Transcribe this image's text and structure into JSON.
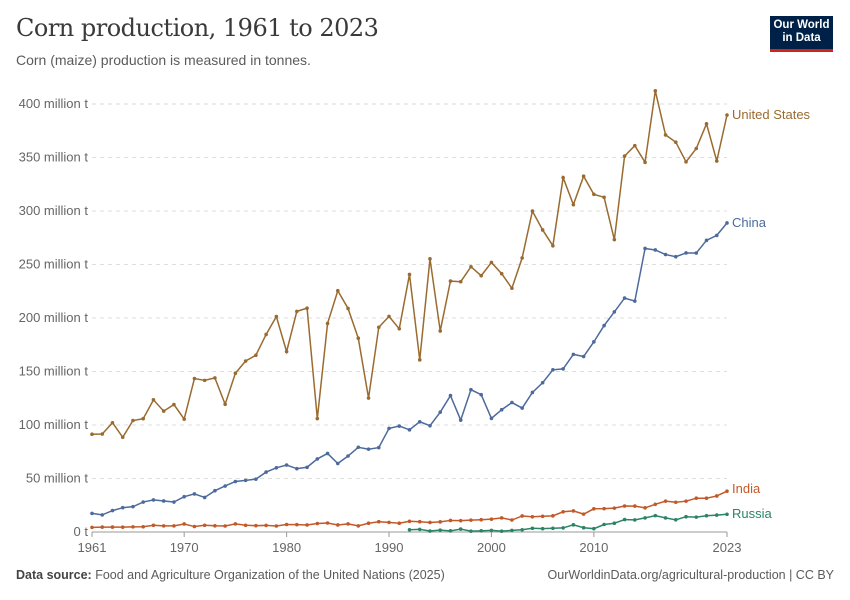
{
  "header": {
    "title": "Corn production, 1961 to 2023",
    "subtitle": "Corn (maize) production is measured in tonnes.",
    "logo": "Our World in Data"
  },
  "footer": {
    "source_label": "Data source:",
    "source": "Food and Agriculture Organization of the United Nations (2025)",
    "url": "OurWorldinData.org/agricultural-production | CC BY"
  },
  "chart_data": {
    "type": "line",
    "title": "Corn production, 1961 to 2023",
    "ylim": [
      0,
      400
    ],
    "yticks": [
      0,
      50,
      100,
      150,
      200,
      250,
      300,
      350,
      400
    ],
    "ytick_labels": [
      "0 t",
      "50 million t",
      "100 million t",
      "150 million t",
      "200 million t",
      "250 million t",
      "300 million t",
      "350 million t",
      "400 million t"
    ],
    "xticks": [
      1961,
      1970,
      1980,
      1990,
      2000,
      2010,
      2023
    ],
    "grid": "horizontal dashed",
    "legend": "line-end labels",
    "series": [
      {
        "name": "United States",
        "color": "#9a6b30",
        "start": 1961,
        "values": [
          91.4,
          91.6,
          102.1,
          88.5,
          104.2,
          105.9,
          123.5,
          113.0,
          119.1,
          105.5,
          143.4,
          141.7,
          144.0,
          119.4,
          148.4,
          159.8,
          165.2,
          184.6,
          201.4,
          168.6,
          206.2,
          209.2,
          106.0,
          194.9,
          225.5,
          208.9,
          181.1,
          125.2,
          191.3,
          201.5,
          189.9,
          240.7,
          160.9,
          255.3,
          187.9,
          234.5,
          233.9,
          247.9,
          239.5,
          251.9,
          241.4,
          227.8,
          256.2,
          299.9,
          282.3,
          267.5,
          331.2,
          305.9,
          332.5,
          315.6,
          312.8,
          273.2,
          351.3,
          361.1,
          345.5,
          412.3,
          371.1,
          364.3,
          345.9,
          358.4,
          381.5,
          346.7,
          389.7
        ]
      },
      {
        "name": "China",
        "color": "#4c6a9c",
        "start": 1961,
        "values": [
          17.4,
          16.0,
          20.0,
          22.7,
          23.7,
          28.0,
          30.0,
          29.0,
          28.0,
          33.0,
          35.6,
          32.3,
          38.6,
          43.0,
          47.2,
          48.2,
          49.4,
          56.0,
          60.0,
          62.6,
          59.2,
          60.5,
          68.3,
          73.4,
          64.0,
          71.0,
          79.2,
          77.4,
          78.9,
          96.8,
          99.0,
          95.5,
          103.0,
          99.3,
          112.0,
          127.5,
          104.6,
          133.0,
          128.3,
          106.2,
          114.3,
          121.0,
          115.8,
          130.4,
          139.5,
          151.6,
          152.4,
          166.0,
          164.0,
          177.7,
          192.9,
          205.7,
          218.6,
          215.8,
          265.0,
          263.6,
          259.3,
          257.3,
          260.8,
          260.7,
          272.6,
          277.2,
          288.8
        ]
      },
      {
        "name": "India",
        "color": "#c15928",
        "start": 1961,
        "values": [
          4.3,
          4.6,
          4.6,
          4.5,
          4.8,
          4.9,
          6.3,
          5.7,
          5.7,
          7.5,
          5.1,
          6.3,
          5.8,
          5.6,
          7.6,
          6.3,
          5.9,
          6.2,
          5.6,
          7.0,
          6.9,
          6.6,
          7.9,
          8.4,
          6.6,
          7.6,
          5.7,
          8.2,
          9.6,
          9.0,
          8.2,
          10.0,
          9.6,
          8.9,
          9.5,
          10.8,
          10.6,
          11.1,
          11.5,
          12.0,
          13.2,
          11.2,
          15.0,
          14.2,
          14.7,
          15.1,
          18.9,
          19.7,
          16.7,
          21.7,
          21.8,
          22.3,
          24.3,
          24.2,
          22.6,
          25.9,
          28.8,
          27.8,
          28.8,
          31.6,
          31.6,
          33.7,
          38.1
        ]
      },
      {
        "name": "Russia",
        "color": "#2c8465",
        "start": 1992,
        "values": [
          2.1,
          2.4,
          0.9,
          1.7,
          1.1,
          2.7,
          0.8,
          1.1,
          1.5,
          0.8,
          1.5,
          2.1,
          3.5,
          3.1,
          3.5,
          3.8,
          6.7,
          4.0,
          3.1,
          7.0,
          8.2,
          11.6,
          11.3,
          13.2,
          15.3,
          13.2,
          11.4,
          14.3,
          13.9,
          15.2,
          15.8,
          16.6
        ]
      }
    ]
  }
}
